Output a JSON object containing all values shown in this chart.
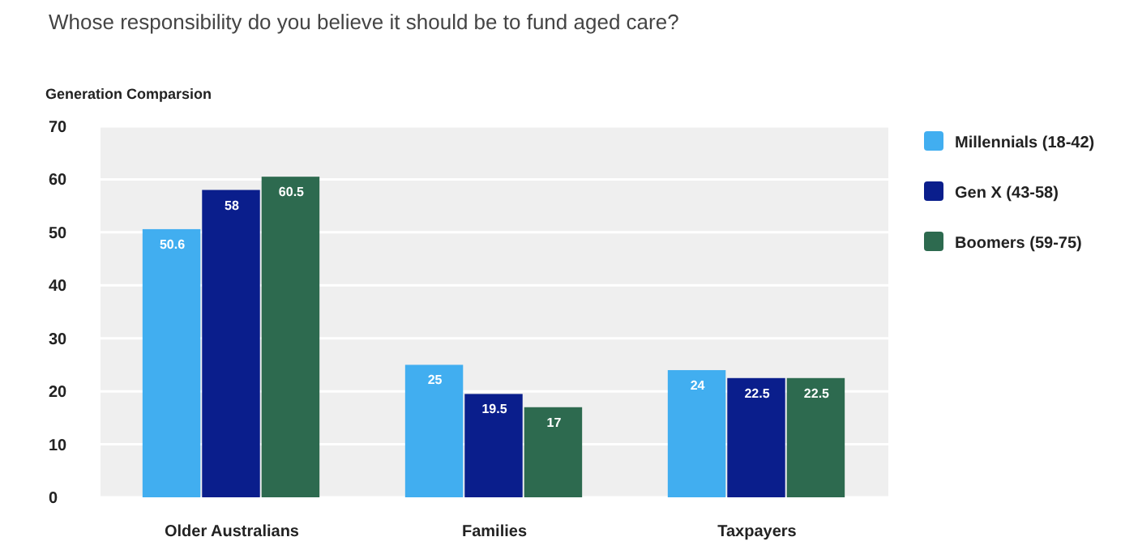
{
  "chart_data": {
    "type": "bar",
    "title": "Whose responsibility do you believe it should be to fund aged care?",
    "subtitle": "Generation Comparsion",
    "categories": [
      "Older Australians",
      "Families",
      "Taxpayers"
    ],
    "series": [
      {
        "name": "Millennials (18-42)",
        "color": "#41aef0",
        "values": [
          50.6,
          25,
          24
        ]
      },
      {
        "name": "Gen X (43-58)",
        "color": "#0a1e8c",
        "values": [
          58,
          19.5,
          22.5
        ]
      },
      {
        "name": "Boomers (59-75)",
        "color": "#2d6a4f",
        "values": [
          60.5,
          17,
          22.5
        ]
      }
    ],
    "ylim": [
      0,
      70
    ],
    "yticks": [
      0,
      10,
      20,
      30,
      40,
      50,
      60,
      70
    ],
    "grid": "y",
    "legend": "right",
    "data_labels": true
  }
}
